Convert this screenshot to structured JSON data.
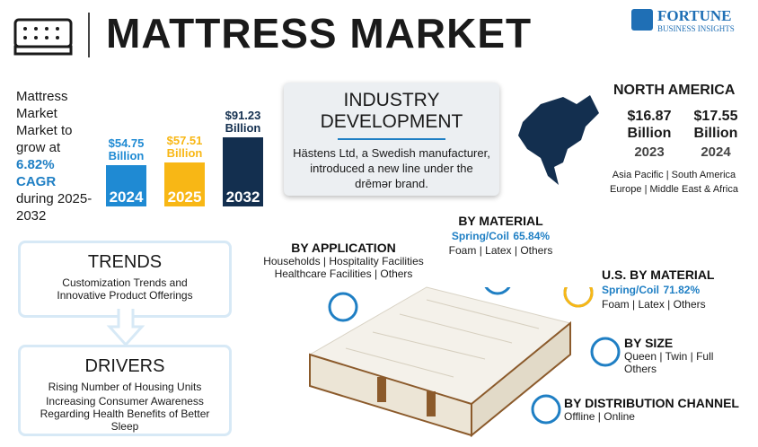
{
  "header": {
    "title": "MATTRESS MARKET",
    "logo_name": "FORTUNE",
    "logo_sub": "BUSINESS INSIGHTS"
  },
  "growth": {
    "intro": "Mattress Market Market to grow at",
    "cagr": "6.82% CAGR",
    "period": "during 2025-2032"
  },
  "chart_data": {
    "type": "bar",
    "categories": [
      "2024",
      "2025",
      "2032"
    ],
    "values": [
      54.75,
      57.51,
      91.23
    ],
    "value_labels": [
      "$54.75 Billion",
      "$57.51 Billion",
      "$91.23 Billion"
    ],
    "colors": [
      "#1f8ad3",
      "#f8b715",
      "#132f4f"
    ]
  },
  "industry": {
    "title": "INDUSTRY DEVELOPMENT",
    "text": "Hästens Ltd, a Swedish manufacturer, introduced a new line under the drēmər brand."
  },
  "region": {
    "name": "NORTH AMERICA",
    "figures": [
      {
        "amount": "$16.87 Billion",
        "year": "2023"
      },
      {
        "amount": "$17.55 Billion",
        "year": "2024"
      }
    ],
    "others": [
      [
        "Asia Pacific",
        "South America"
      ],
      [
        "Europe",
        "Middle East & Africa"
      ]
    ]
  },
  "trends": {
    "title": "TRENDS",
    "text": "Customization Trends and Innovative Product Offerings"
  },
  "drivers": {
    "title": "DRIVERS",
    "items": [
      "Rising Number of Housing Units",
      "Increasing Consumer Awareness Regarding Health Benefits of Better Sleep"
    ]
  },
  "segments": {
    "application": {
      "title": "BY APPLICATION",
      "lines": [
        [
          "Households",
          "Hospitality Facilities"
        ],
        [
          "Healthcare Facilities",
          "Others"
        ]
      ]
    },
    "material": {
      "title": "BY MATERIAL",
      "lead": "Spring/Coil",
      "share": "65.84%",
      "lines": [
        [
          "Foam",
          "Latex",
          "Others"
        ]
      ]
    },
    "us_material": {
      "title": "U.S. BY MATERIAL",
      "lead": "Spring/Coil",
      "share": "71.82%",
      "lines": [
        [
          "Foam",
          "Latex",
          "Others"
        ]
      ]
    },
    "size": {
      "title": "BY SIZE",
      "lines": [
        [
          "Queen",
          "Twin",
          "Full"
        ],
        [
          "Others"
        ]
      ]
    },
    "distribution": {
      "title": "BY DISTRIBUTION CHANNEL",
      "lines": [
        [
          "Offline",
          "Online"
        ]
      ]
    }
  }
}
